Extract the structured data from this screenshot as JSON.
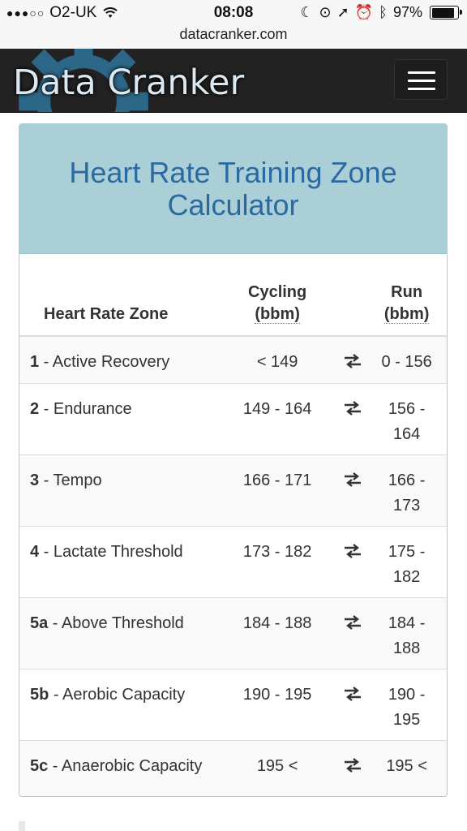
{
  "status_bar": {
    "carrier": "O2-UK",
    "time": "08:08",
    "battery": "97%",
    "battery_level": 0.97
  },
  "browser": {
    "url": "datacranker.com"
  },
  "navbar": {
    "brand": "Data Cranker",
    "menu_icon": "hamburger-menu-icon"
  },
  "panel": {
    "title": "Heart Rate Training Zone Calculator"
  },
  "table": {
    "headers": {
      "zone": "Heart Rate Zone",
      "cycling": "Cycling",
      "cycling_unit": "(bbm)",
      "run": "Run",
      "run_unit": "(bbm)"
    },
    "rows": [
      {
        "num": "1",
        "name": " - Active Recovery",
        "cycling": "< 149",
        "run": "0 - 156"
      },
      {
        "num": "2",
        "name": " - Endurance",
        "cycling": "149 - 164",
        "run": "156 - 164"
      },
      {
        "num": "3",
        "name": " - Tempo",
        "cycling": "166 - 171",
        "run": "166 - 173"
      },
      {
        "num": "4",
        "name": " - Lactate Threshold",
        "cycling": "173 - 182",
        "run": "175 - 182"
      },
      {
        "num": "5a",
        "name": " - Above Threshold",
        "cycling": "184 - 188",
        "run": "184 - 188"
      },
      {
        "num": "5b",
        "name": " - Aerobic Capacity",
        "cycling": "190 - 195",
        "run": "190 - 195"
      },
      {
        "num": "5c",
        "name": " - Anaerobic Capacity",
        "cycling": "195 <",
        "run": "195 <"
      }
    ],
    "swap_icon": "swap-arrows-icon"
  },
  "colors": {
    "navbar_bg": "#222222",
    "panel_heading_bg": "#abcfd6",
    "title_color": "#2b6aa0"
  }
}
